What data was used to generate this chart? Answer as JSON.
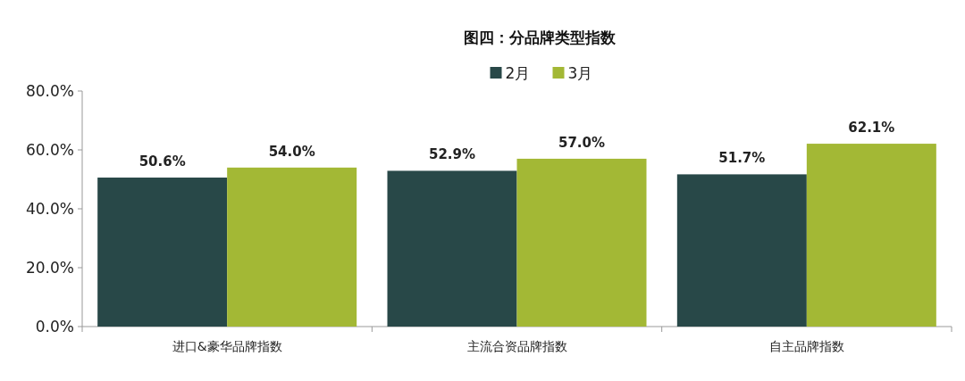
{
  "chart_data": {
    "type": "bar",
    "title": "图四：分品牌类型指数",
    "categories": [
      "进口&豪华品牌指数",
      "主流合资品牌指数",
      "自主品牌指数"
    ],
    "series": [
      {
        "name": "2月",
        "color": "#284848",
        "values": [
          50.6,
          52.9,
          51.7
        ],
        "value_labels": [
          "50.6%",
          "52.9%",
          "51.7%"
        ]
      },
      {
        "name": "3月",
        "color": "#a3b835",
        "values": [
          54.0,
          57.0,
          62.1
        ],
        "value_labels": [
          "54.0%",
          "57.0%",
          "62.1%"
        ]
      }
    ],
    "ylim": [
      0,
      80
    ],
    "yticks": [
      {
        "value": 0,
        "label": "0.0%"
      },
      {
        "value": 20,
        "label": "20.0%"
      },
      {
        "value": 40,
        "label": "40.0%"
      },
      {
        "value": 60,
        "label": "60.0%"
      },
      {
        "value": 80,
        "label": "80.0%"
      }
    ],
    "legend": "top"
  }
}
